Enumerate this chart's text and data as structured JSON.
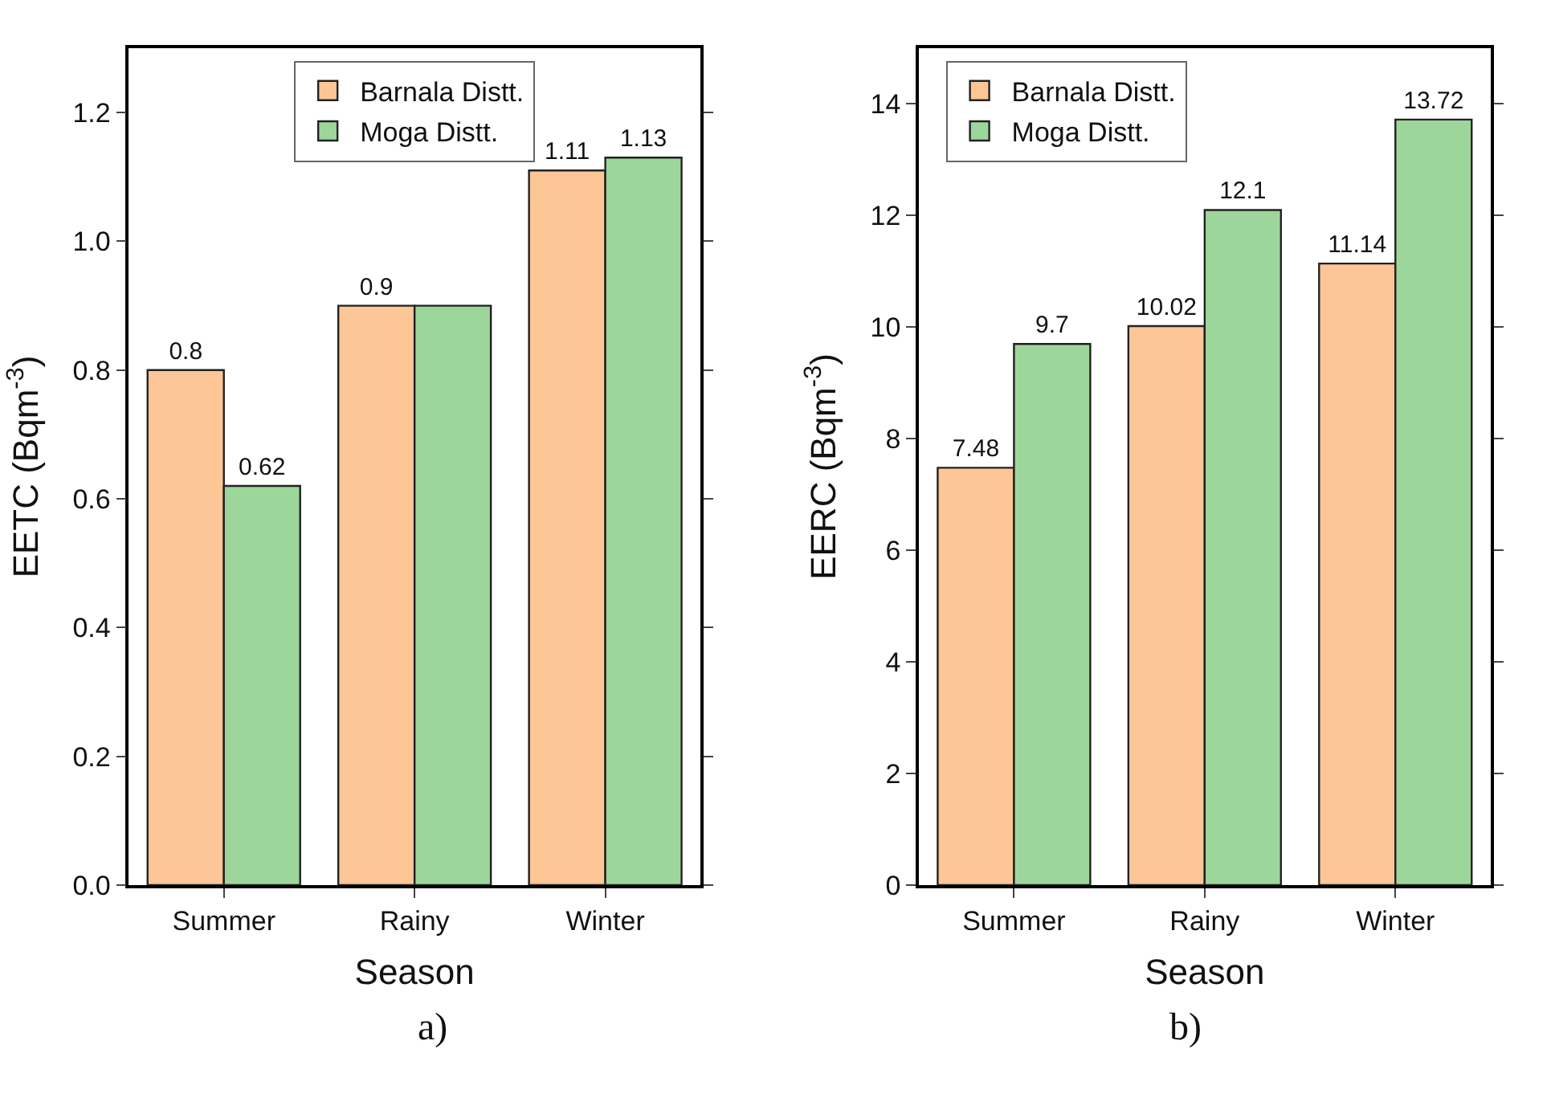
{
  "chart_data": [
    {
      "type": "bar",
      "categories": [
        "Summer",
        "Rainy",
        "Winter"
      ],
      "xlabel": "Season",
      "ylabel": "EETC (Bqm$^{-3}$)",
      "ylim": [
        0,
        1.3
      ],
      "yticks": [
        {
          "value": 0,
          "label": "0.0"
        },
        0.2,
        0.4,
        0.6,
        0.8,
        {
          "value": 1,
          "label": "1.0"
        },
        1.2
      ],
      "legend": "top",
      "annotations": [
        "a)"
      ],
      "series": [
        {
          "name": "Barnala Distt.",
          "color": "#fdc697",
          "values": [
            0.8,
            0.9,
            1.11
          ],
          "value_labels": [
            "0.8",
            "0.9",
            "1.11"
          ]
        },
        {
          "name": "Moga Distt.",
          "color": "#9dd69a",
          "values": [
            0.62,
            0.9,
            1.13
          ],
          "value_labels": [
            "0.62",
            null,
            "1.13"
          ]
        }
      ]
    },
    {
      "type": "bar",
      "categories": [
        "Summer",
        "Rainy",
        "Winter"
      ],
      "xlabel": "Season",
      "ylabel": "EERC (Bqm$^{-3}$)",
      "ylim": [
        0,
        15
      ],
      "yticks": [
        0,
        2,
        4,
        6,
        8,
        10,
        12,
        14
      ],
      "legend": "top left",
      "annotations": [
        "b)"
      ],
      "series": [
        {
          "name": "Barnala Distt.",
          "color": "#fdc697",
          "values": [
            7.48,
            10.02,
            11.14
          ],
          "value_labels": [
            "7.48",
            "10.02",
            "11.14"
          ]
        },
        {
          "name": "Moga Distt.",
          "color": "#9dd69a",
          "values": [
            9.7,
            12.1,
            13.72
          ],
          "value_labels": [
            "9.7",
            "12.1",
            "13.72"
          ]
        }
      ]
    }
  ]
}
